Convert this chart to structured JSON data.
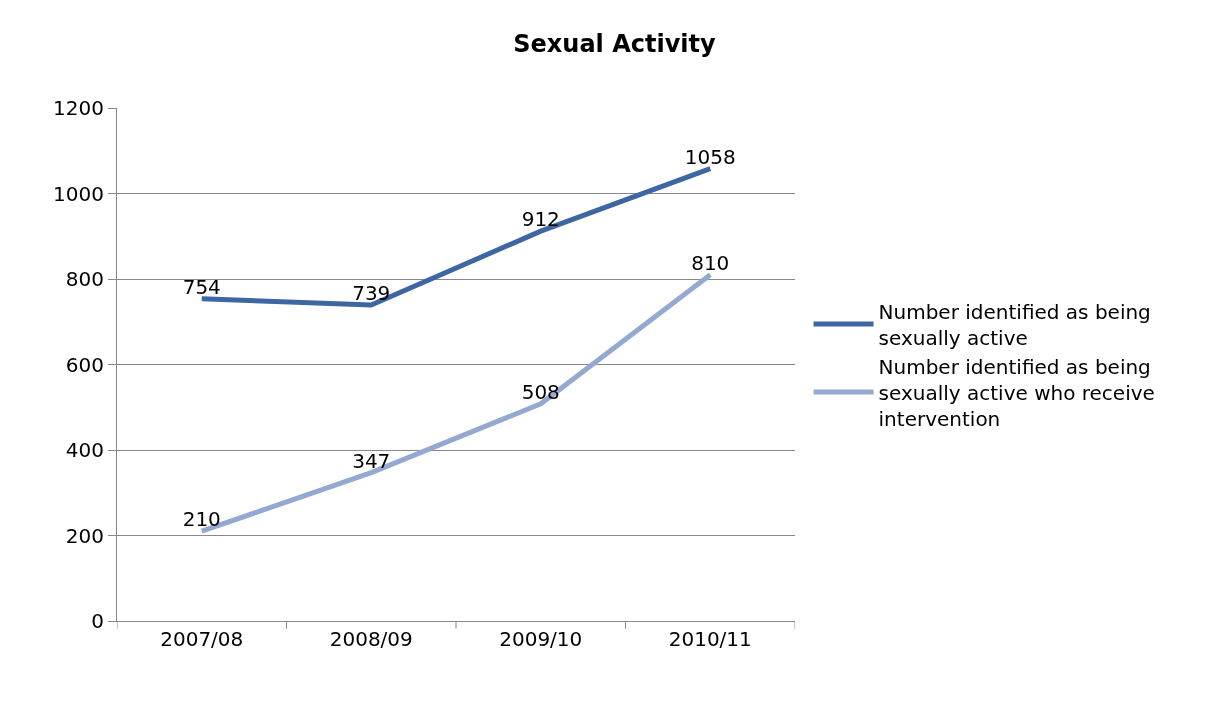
{
  "chart_data": {
    "type": "line",
    "title": "Sexual Activity",
    "categories": [
      "2007/08",
      "2008/09",
      "2009/10",
      "2010/11"
    ],
    "series": [
      {
        "name": "Number identified as being sexually active",
        "color": "#3d66a3",
        "values": [
          754,
          739,
          912,
          1058
        ]
      },
      {
        "name": "Number identified as being sexually active who receive intervention",
        "color": "#93a9d0",
        "values": [
          210,
          347,
          508,
          810
        ]
      }
    ],
    "ylim": [
      0,
      1200
    ],
    "yticks": [
      0,
      200,
      400,
      600,
      800,
      1000,
      1200
    ],
    "grid": "y",
    "legend": "right",
    "marker": "none",
    "line_style": "solid",
    "data_labels": true
  }
}
